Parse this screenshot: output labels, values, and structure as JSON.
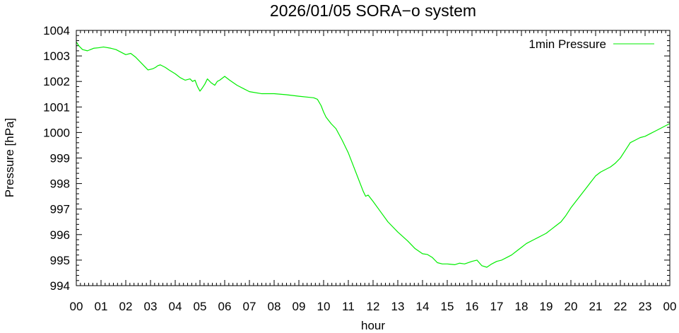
{
  "chart_data": {
    "type": "line",
    "title": "2026/01/05 SORA−o system",
    "xlabel": "hour",
    "ylabel": "Pressure [hPa]",
    "xlim": [
      0,
      24
    ],
    "ylim": [
      994,
      1004
    ],
    "xticks": [
      "00",
      "01",
      "02",
      "03",
      "04",
      "05",
      "06",
      "07",
      "08",
      "09",
      "10",
      "11",
      "12",
      "13",
      "14",
      "15",
      "16",
      "17",
      "18",
      "19",
      "20",
      "21",
      "22",
      "23",
      "00"
    ],
    "yticks": [
      994,
      995,
      996,
      997,
      998,
      999,
      1000,
      1001,
      1002,
      1003,
      1004
    ],
    "grid": false,
    "legend_position": "top-right",
    "series": [
      {
        "name": "1min Pressure",
        "color": "#00ee00",
        "x": [
          0.0,
          0.1,
          0.25,
          0.45,
          0.7,
          0.9,
          1.1,
          1.4,
          1.6,
          1.8,
          2.0,
          2.2,
          2.4,
          2.55,
          2.8,
          2.9,
          3.1,
          3.2,
          3.3,
          3.4,
          3.6,
          3.75,
          4.0,
          4.2,
          4.4,
          4.6,
          4.7,
          4.8,
          4.9,
          5.0,
          5.1,
          5.2,
          5.3,
          5.45,
          5.6,
          5.7,
          5.8,
          6.0,
          6.2,
          6.5,
          6.8,
          7.0,
          7.5,
          8.0,
          8.5,
          9.0,
          9.4,
          9.6,
          9.75,
          9.9,
          10.0,
          10.1,
          10.3,
          10.5,
          10.75,
          11.0,
          11.2,
          11.4,
          11.6,
          11.7,
          11.8,
          12.0,
          12.3,
          12.6,
          13.0,
          13.4,
          13.7,
          14.0,
          14.2,
          14.4,
          14.6,
          14.8,
          15.0,
          15.3,
          15.5,
          15.7,
          16.0,
          16.2,
          16.4,
          16.6,
          16.8,
          17.0,
          17.2,
          17.4,
          17.6,
          17.8,
          18.0,
          18.2,
          18.5,
          18.8,
          19.0,
          19.2,
          19.4,
          19.6,
          19.8,
          20.0,
          20.2,
          20.4,
          20.6,
          20.8,
          21.0,
          21.2,
          21.4,
          21.6,
          21.8,
          22.0,
          22.2,
          22.4,
          22.6,
          22.8,
          23.0,
          23.2,
          23.4,
          23.6,
          23.8,
          24.0
        ],
        "y": [
          1003.55,
          1003.4,
          1003.25,
          1003.2,
          1003.3,
          1003.32,
          1003.35,
          1003.3,
          1003.25,
          1003.15,
          1003.05,
          1003.1,
          1002.95,
          1002.8,
          1002.55,
          1002.45,
          1002.5,
          1002.55,
          1002.62,
          1002.65,
          1002.55,
          1002.45,
          1002.3,
          1002.15,
          1002.05,
          1002.1,
          1002.0,
          1002.05,
          1001.8,
          1001.62,
          1001.75,
          1001.9,
          1002.1,
          1001.95,
          1001.85,
          1002.0,
          1002.05,
          1002.2,
          1002.05,
          1001.85,
          1001.7,
          1001.6,
          1001.52,
          1001.52,
          1001.48,
          1001.42,
          1001.38,
          1001.36,
          1001.3,
          1001.05,
          1000.8,
          1000.6,
          1000.35,
          1000.15,
          999.7,
          999.2,
          998.7,
          998.2,
          997.7,
          997.5,
          997.55,
          997.3,
          996.9,
          996.5,
          996.1,
          995.75,
          995.45,
          995.25,
          995.22,
          995.1,
          994.9,
          994.85,
          994.85,
          994.82,
          994.88,
          994.85,
          994.95,
          995.0,
          994.78,
          994.72,
          994.85,
          994.95,
          995.0,
          995.1,
          995.2,
          995.35,
          995.5,
          995.65,
          995.8,
          995.95,
          996.05,
          996.2,
          996.35,
          996.5,
          996.75,
          997.05,
          997.3,
          997.55,
          997.8,
          998.05,
          998.3,
          998.45,
          998.55,
          998.65,
          998.8,
          999.0,
          999.3,
          999.6,
          999.7,
          999.8,
          999.85,
          999.95,
          1000.05,
          1000.15,
          1000.25,
          1000.35
        ]
      }
    ]
  }
}
